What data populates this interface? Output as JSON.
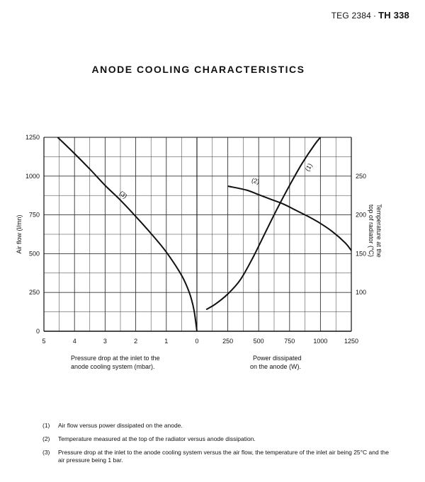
{
  "header": {
    "doc_ref": "TEG 2384",
    "separator": "·",
    "tube": "TH 338"
  },
  "title": "ANODE COOLING CHARACTERISTICS",
  "captions": {
    "left_line1": "Pressure drop at the inlet to the",
    "left_line2": "anode cooling system (mbar).",
    "right_line1": "Power dissipated",
    "right_line2": "on the anode (W).",
    "left_axis": "Air flow (l/mn)",
    "right_axis_line1": "Temperature at the",
    "right_axis_line2": "top of radiator (°C)"
  },
  "notes": [
    {
      "num": "(1)",
      "text": "Air flow versus power dissipated on the anode."
    },
    {
      "num": "(2)",
      "text": "Temperature measured at the top of the radiator versus anode dissipation."
    },
    {
      "num": "(3)",
      "text": "Pressure drop at the inlet to the anode cooling system versus the air flow, the temperature of the inlet air being 25°C and the air pressure being 1 bar."
    }
  ],
  "chart_data": [
    {
      "type": "line",
      "panel": "left",
      "xlabel": "Pressure drop at the inlet to the anode cooling system (mbar).",
      "ylabel": "Air flow (l/mn)",
      "xlim": [
        5,
        0
      ],
      "ylim": [
        0,
        1250
      ],
      "x_ticks": [
        "5",
        "4",
        "3",
        "2",
        "1",
        "0"
      ],
      "y_ticks": [
        "0",
        "250",
        "500",
        "750",
        "1000",
        "1250"
      ],
      "grid": true,
      "series": [
        {
          "name": "(3)",
          "x": [
            4.55,
            4.0,
            3.5,
            3.0,
            2.5,
            2.0,
            1.5,
            1.0,
            0.5,
            0.25,
            0.1,
            0.0
          ],
          "y": [
            1250,
            1145,
            1045,
            940,
            845,
            740,
            630,
            510,
            360,
            250,
            140,
            0
          ]
        }
      ]
    },
    {
      "type": "line",
      "panel": "right",
      "xlabel": "Power dissipated on the anode (W).",
      "ylabel": "Air flow (l/mn)",
      "y2label": "Temperature at the top of radiator (°C)",
      "xlim": [
        0,
        1250
      ],
      "ylim": [
        0,
        1250
      ],
      "y2lim": [
        50,
        300
      ],
      "x_ticks": [
        "250",
        "500",
        "750",
        "1000",
        "1250"
      ],
      "y2_ticks": [
        "100",
        "150",
        "200",
        "250"
      ],
      "grid": true,
      "series": [
        {
          "name": "(1)",
          "axis": "left",
          "x": [
            75,
            150,
            250,
            350,
            450,
            550,
            650,
            750,
            850,
            950,
            1000
          ],
          "y": [
            140,
            175,
            240,
            330,
            470,
            630,
            790,
            940,
            1080,
            1200,
            1250
          ]
        },
        {
          "name": "(2)",
          "axis": "right",
          "x": [
            250,
            400,
            500,
            600,
            700,
            800,
            900,
            1000,
            1100,
            1200,
            1250
          ],
          "y": [
            237,
            232,
            226,
            220,
            214,
            206,
            198,
            189,
            178,
            164,
            154
          ]
        }
      ]
    }
  ]
}
